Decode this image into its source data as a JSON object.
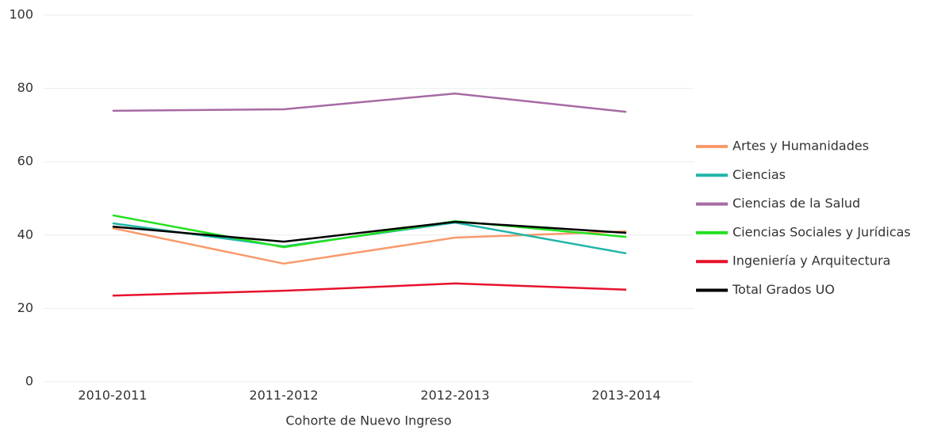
{
  "chart_data": {
    "type": "line",
    "x_label": "Cohorte de Nuevo Ingreso",
    "categories": [
      "2010-2011",
      "2011-2012",
      "2012-2013",
      "2013-2014"
    ],
    "series": [
      {
        "name": "Artes y Humanidades",
        "color": "#f89a6c",
        "values": [
          41.9,
          32.2,
          39.3,
          41.0
        ]
      },
      {
        "name": "Ciencias",
        "color": "#1fb5a8",
        "values": [
          43.2,
          36.9,
          43.4,
          35.0
        ]
      },
      {
        "name": "Ciencias de la Salud",
        "color": "#a66aa4",
        "values": [
          73.9,
          74.3,
          78.6,
          73.6
        ]
      },
      {
        "name": "Ciencias Sociales y Jurídicas",
        "color": "#22e01f",
        "values": [
          45.4,
          36.7,
          43.8,
          39.5
        ]
      },
      {
        "name": "Ingeniería y Arquitectura",
        "color": "#e8112d",
        "values": [
          23.5,
          24.8,
          26.8,
          25.1
        ]
      },
      {
        "name": "Total Grados UO",
        "color": "#000000",
        "values": [
          42.3,
          38.2,
          43.6,
          40.6
        ]
      }
    ],
    "ylim": [
      0,
      100
    ],
    "yticks": [
      0,
      20,
      40,
      60,
      80,
      100
    ],
    "grid": true,
    "legend": "right"
  }
}
